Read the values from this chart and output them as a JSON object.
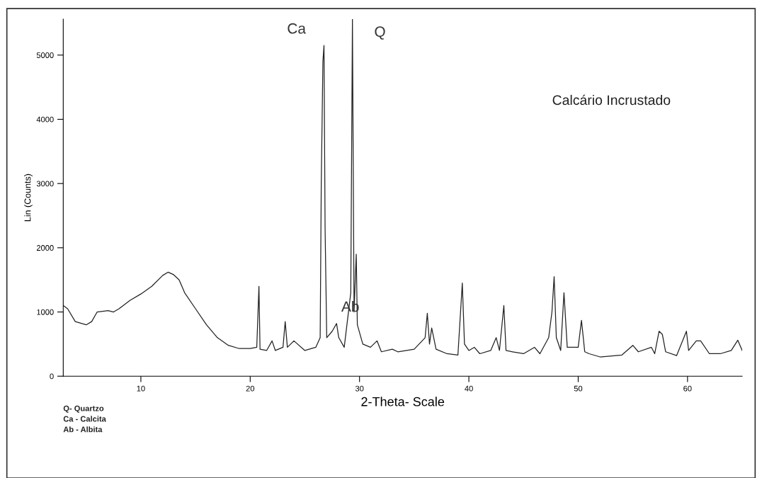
{
  "chart_data": {
    "type": "line",
    "xlabel": "2-Theta- Scale",
    "ylabel": "Lin (Counts)",
    "xlim": [
      2.9,
      65
    ],
    "xticks": [
      10,
      20,
      30,
      40,
      50,
      60
    ],
    "ylim": [
      0,
      5560
    ],
    "yticks": [
      0,
      1000,
      2000,
      3000,
      4000,
      5000
    ],
    "grid": false,
    "legend": false,
    "marker": "none",
    "line_style": "solid",
    "series": [
      {
        "color": "#222222",
        "x": [
          2.9,
          3.3,
          4,
          5,
          5.5,
          6,
          7,
          7.5,
          8,
          9,
          10,
          11,
          12,
          12.5,
          13,
          13.5,
          14,
          15,
          16,
          17,
          18,
          19,
          20,
          20.6,
          20.8,
          20.9,
          21.5,
          22,
          22.3,
          23,
          23.2,
          23.4,
          24,
          25,
          26,
          26.4,
          26.5,
          26.65,
          26.75,
          26.85,
          27.0,
          27.5,
          27.9,
          28.1,
          28.6,
          29.2,
          29.35,
          29.5,
          29.7,
          29.8,
          30.3,
          31,
          31.6,
          32,
          33,
          33.5,
          35,
          36,
          36.2,
          36.4,
          36.6,
          37,
          38,
          39,
          39.4,
          39.6,
          40,
          40.5,
          41,
          42,
          42.5,
          42.8,
          43.2,
          43.4,
          44,
          45,
          46,
          46.5,
          47.3,
          47.6,
          47.8,
          48.0,
          48.4,
          48.7,
          49,
          50,
          50.3,
          50.6,
          51,
          52,
          54,
          55,
          55.5,
          56.7,
          57,
          57.4,
          57.7,
          58,
          59,
          59.9,
          60.1,
          60.8,
          61.2,
          62,
          63,
          64,
          64.6,
          65
        ],
        "values": [
          1100,
          1050,
          850,
          800,
          850,
          1000,
          1020,
          1000,
          1050,
          1180,
          1280,
          1400,
          1570,
          1620,
          1580,
          1500,
          1300,
          1050,
          800,
          600,
          480,
          430,
          430,
          450,
          1400,
          420,
          400,
          550,
          400,
          450,
          850,
          450,
          550,
          400,
          450,
          600,
          3000,
          4900,
          5150,
          2300,
          600,
          700,
          820,
          600,
          450,
          1300,
          5560,
          1000,
          1900,
          800,
          500,
          450,
          550,
          380,
          420,
          380,
          420,
          600,
          980,
          500,
          750,
          420,
          350,
          330,
          1450,
          500,
          400,
          450,
          350,
          400,
          600,
          400,
          1100,
          400,
          380,
          350,
          450,
          350,
          600,
          1000,
          1550,
          600,
          400,
          1300,
          450,
          450,
          870,
          380,
          350,
          300,
          330,
          480,
          380,
          450,
          350,
          700,
          650,
          380,
          320,
          700,
          400,
          550,
          550,
          350,
          350,
          400,
          560,
          400
        ]
      }
    ],
    "annotations": [
      {
        "text": "Ca",
        "x": 26.75,
        "y": 5150
      },
      {
        "text": "Q",
        "x": 29.35,
        "y": 5560
      },
      {
        "text": "Ab",
        "x": 27.9,
        "y": 820
      },
      "Calcário Incrustado",
      "Q- Quartzo",
      "Ca - Calcita",
      "Ab - Albita"
    ]
  }
}
